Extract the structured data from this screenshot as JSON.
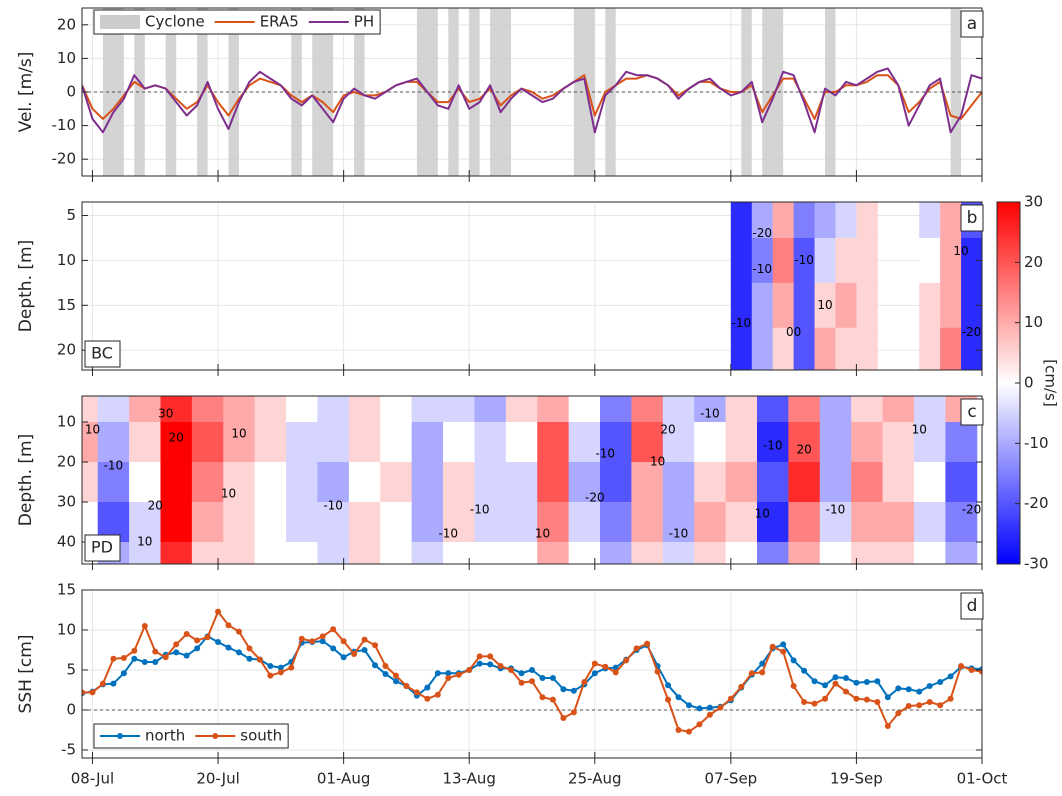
{
  "chart_data": [
    {
      "type": "line",
      "panel": "a",
      "ylabel": "Vel. [m/s]",
      "ylim": [
        -25,
        25
      ],
      "yticks": [
        -20,
        -10,
        0,
        10,
        20
      ],
      "grid": true,
      "zero_line": true,
      "legend": "upper left",
      "xlim": [
        "07-Jul",
        "01-Oct"
      ],
      "xticks": [
        "08-Jul",
        "20-Jul",
        "01-Aug",
        "13-Aug",
        "25-Aug",
        "07-Sep",
        "19-Sep",
        "01-Oct"
      ],
      "cyclone": {
        "name": "Cyclone",
        "color": "#cccccc",
        "spans": [
          [
            "09-Jul",
            "11-Jul"
          ],
          [
            "12-Jul",
            "13-Jul"
          ],
          [
            "15-Jul",
            "16-Jul"
          ],
          [
            "18-Jul",
            "19-Jul"
          ],
          [
            "21-Jul",
            "22-Jul"
          ],
          [
            "27-Jul",
            "28-Jul"
          ],
          [
            "29-Jul",
            "31-Jul"
          ],
          [
            "02-Aug",
            "03-Aug"
          ],
          [
            "08-Aug",
            "10-Aug"
          ],
          [
            "11-Aug",
            "12-Aug"
          ],
          [
            "13-Aug",
            "14-Aug"
          ],
          [
            "15-Aug",
            "17-Aug"
          ],
          [
            "23-Aug",
            "25-Aug"
          ],
          [
            "26-Aug",
            "27-Aug"
          ],
          [
            "08-Sep",
            "09-Sep"
          ],
          [
            "10-Sep",
            "12-Sep"
          ],
          [
            "16-Sep",
            "17-Sep"
          ],
          [
            "28-Sep",
            "29-Sep"
          ]
        ]
      },
      "x": [
        "07-Jul",
        "08-Jul",
        "09-Jul",
        "10-Jul",
        "11-Jul",
        "12-Jul",
        "13-Jul",
        "14-Jul",
        "15-Jul",
        "16-Jul",
        "17-Jul",
        "18-Jul",
        "19-Jul",
        "20-Jul",
        "21-Jul",
        "22-Jul",
        "23-Jul",
        "24-Jul",
        "25-Jul",
        "26-Jul",
        "27-Jul",
        "28-Jul",
        "29-Jul",
        "30-Jul",
        "31-Jul",
        "01-Aug",
        "02-Aug",
        "03-Aug",
        "04-Aug",
        "05-Aug",
        "06-Aug",
        "07-Aug",
        "08-Aug",
        "09-Aug",
        "10-Aug",
        "11-Aug",
        "12-Aug",
        "13-Aug",
        "14-Aug",
        "15-Aug",
        "16-Aug",
        "17-Aug",
        "18-Aug",
        "19-Aug",
        "20-Aug",
        "21-Aug",
        "22-Aug",
        "23-Aug",
        "24-Aug",
        "25-Aug",
        "26-Aug",
        "27-Aug",
        "28-Aug",
        "29-Aug",
        "30-Aug",
        "31-Aug",
        "01-Sep",
        "02-Sep",
        "03-Sep",
        "04-Sep",
        "05-Sep",
        "06-Sep",
        "07-Sep",
        "08-Sep",
        "09-Sep",
        "10-Sep",
        "11-Sep",
        "12-Sep",
        "13-Sep",
        "14-Sep",
        "15-Sep",
        "16-Sep",
        "17-Sep",
        "18-Sep",
        "19-Sep",
        "20-Sep",
        "21-Sep",
        "22-Sep",
        "23-Sep",
        "24-Sep",
        "25-Sep",
        "26-Sep",
        "27-Sep",
        "28-Sep",
        "29-Sep",
        "30-Sep",
        "01-Oct"
      ],
      "series": [
        {
          "name": "ERA5",
          "color": "#d95319",
          "values": [
            2,
            -5,
            -8,
            -5,
            -1,
            3,
            1,
            2,
            1,
            -2,
            -5,
            -3,
            2,
            -3,
            -7,
            -2,
            2,
            4,
            3,
            2,
            -1,
            -3,
            -1,
            -3,
            -6,
            -1,
            0,
            -1,
            -1,
            0,
            2,
            3,
            3,
            0,
            -3,
            -3,
            1,
            -3,
            -2,
            1,
            -4,
            -1,
            1,
            0,
            -2,
            -1,
            1,
            3,
            5,
            -7,
            0,
            2,
            4,
            4,
            5,
            4,
            2,
            -1,
            1,
            3,
            3,
            1,
            0,
            0,
            2,
            -6,
            -1,
            4,
            4,
            -2,
            -8,
            0,
            0,
            2,
            2,
            3,
            5,
            5,
            2,
            -6,
            -3,
            1,
            3,
            -7,
            -8,
            -4,
            0
          ]
        },
        {
          "name": "PH",
          "color": "#7e2f8e",
          "values": [
            2,
            -8,
            -12,
            -6,
            -2,
            5,
            1,
            2,
            1,
            -3,
            -7,
            -4,
            3,
            -5,
            -11,
            -3,
            3,
            6,
            4,
            2,
            -2,
            -4,
            -1,
            -5,
            -9,
            -2,
            1,
            -1,
            -2,
            0,
            2,
            3,
            4,
            0,
            -4,
            -5,
            2,
            -5,
            -3,
            2,
            -6,
            -2,
            1,
            -1,
            -3,
            -2,
            1,
            3,
            4,
            -12,
            -1,
            2,
            6,
            5,
            5,
            4,
            2,
            -2,
            1,
            3,
            4,
            1,
            -1,
            0,
            3,
            -9,
            -2,
            6,
            5,
            -3,
            -12,
            1,
            -1,
            3,
            2,
            4,
            6,
            7,
            2,
            -10,
            -4,
            2,
            4,
            -12,
            -7,
            5,
            4
          ]
        }
      ]
    },
    {
      "type": "heatmap",
      "panel": "b",
      "tag": "BC",
      "ylabel": "Depth. [m]",
      "ylim": [
        22.2,
        3.5
      ],
      "yticks": [
        5,
        10,
        15,
        20
      ],
      "grid": true,
      "xlim": [
        "07-Jul",
        "01-Oct"
      ],
      "xticks": [
        "08-Jul",
        "20-Jul",
        "01-Aug",
        "13-Aug",
        "25-Aug",
        "07-Sep",
        "19-Sep",
        "01-Oct"
      ],
      "colorbar": {
        "label": "[cm/s]",
        "lim": [
          -30,
          30
        ],
        "ticks": [
          -30,
          -20,
          -10,
          0,
          10,
          20,
          30
        ]
      },
      "x": [
        "08-Sep",
        "10-Sep",
        "12-Sep",
        "14-Sep",
        "16-Sep",
        "18-Sep",
        "20-Sep",
        "22-Sep",
        "24-Sep",
        "26-Sep",
        "28-Sep",
        "30-Sep"
      ],
      "y": [
        5,
        10,
        15,
        20
      ],
      "z": [
        [
          -25,
          -10,
          10,
          -15,
          -10,
          -5,
          5,
          null,
          null,
          -5,
          10,
          -20
        ],
        [
          -25,
          -15,
          15,
          -20,
          -5,
          5,
          5,
          null,
          null,
          0,
          10,
          -25
        ],
        [
          -25,
          -10,
          10,
          -20,
          5,
          10,
          5,
          null,
          null,
          5,
          10,
          -25
        ],
        [
          -25,
          -10,
          5,
          -20,
          10,
          5,
          5,
          null,
          null,
          5,
          15,
          -25
        ]
      ],
      "annotations": [
        {
          "x": "08-Sep",
          "y": 17,
          "text": "-10"
        },
        {
          "x": "10-Sep",
          "y": 7,
          "text": "-20"
        },
        {
          "x": "10-Sep",
          "y": 11,
          "text": "-10"
        },
        {
          "x": "14-Sep",
          "y": 10,
          "text": "-10"
        },
        {
          "x": "16-Sep",
          "y": 15,
          "text": "10"
        },
        {
          "x": "13-Sep",
          "y": 18,
          "text": "00"
        },
        {
          "x": "29-Sep",
          "y": 9,
          "text": "10"
        },
        {
          "x": "30-Sep",
          "y": 18,
          "text": "-20"
        }
      ]
    },
    {
      "type": "heatmap",
      "panel": "c",
      "tag": "PD",
      "ylabel": "Depth. [m]",
      "ylim": [
        45.5,
        3.5
      ],
      "yticks": [
        10,
        20,
        30,
        40
      ],
      "grid": true,
      "xlim": [
        "07-Jul",
        "01-Oct"
      ],
      "xticks": [
        "08-Jul",
        "20-Jul",
        "01-Aug",
        "13-Aug",
        "25-Aug",
        "07-Sep",
        "19-Sep",
        "01-Oct"
      ],
      "x": [
        "07-Jul",
        "10-Jul",
        "13-Jul",
        "16-Jul",
        "19-Jul",
        "22-Jul",
        "25-Jul",
        "28-Jul",
        "31-Jul",
        "03-Aug",
        "06-Aug",
        "09-Aug",
        "12-Aug",
        "15-Aug",
        "18-Aug",
        "21-Aug",
        "24-Aug",
        "27-Aug",
        "30-Aug",
        "02-Sep",
        "05-Sep",
        "08-Sep",
        "11-Sep",
        "14-Sep",
        "17-Sep",
        "20-Sep",
        "23-Sep",
        "26-Sep",
        "29-Sep"
      ],
      "y": [
        5,
        15,
        25,
        35,
        45
      ],
      "z": [
        [
          5,
          -5,
          10,
          25,
          15,
          10,
          5,
          0,
          -5,
          5,
          0,
          -5,
          -5,
          -10,
          5,
          10,
          0,
          -15,
          15,
          -5,
          -10,
          5,
          -20,
          15,
          -10,
          5,
          10,
          -5,
          10
        ],
        [
          10,
          -10,
          5,
          30,
          20,
          10,
          5,
          -5,
          -5,
          5,
          0,
          -10,
          0,
          -5,
          0,
          20,
          -5,
          -20,
          20,
          -5,
          0,
          5,
          -25,
          20,
          -10,
          10,
          5,
          -5,
          -15
        ],
        [
          5,
          -15,
          0,
          30,
          15,
          5,
          0,
          -5,
          -10,
          0,
          5,
          -10,
          5,
          -5,
          -5,
          20,
          -10,
          -20,
          10,
          -10,
          5,
          10,
          -20,
          25,
          -10,
          15,
          5,
          0,
          -20
        ],
        [
          0,
          -20,
          -5,
          30,
          10,
          5,
          0,
          -5,
          -5,
          5,
          0,
          -10,
          5,
          -5,
          -5,
          15,
          -5,
          -15,
          10,
          -10,
          10,
          5,
          -25,
          15,
          -5,
          10,
          10,
          -5,
          -15
        ],
        [
          0,
          -10,
          -5,
          25,
          5,
          5,
          0,
          0,
          -5,
          5,
          0,
          -5,
          0,
          0,
          0,
          10,
          0,
          -10,
          5,
          -5,
          5,
          0,
          -15,
          10,
          0,
          5,
          5,
          0,
          -10
        ]
      ],
      "annotations": [
        {
          "x": "08-Jul",
          "y": 12,
          "text": "10"
        },
        {
          "x": "10-Jul",
          "y": 21,
          "text": "-10"
        },
        {
          "x": "15-Jul",
          "y": 8,
          "text": "30"
        },
        {
          "x": "16-Jul",
          "y": 14,
          "text": "20"
        },
        {
          "x": "14-Jul",
          "y": 31,
          "text": "20"
        },
        {
          "x": "13-Jul",
          "y": 40,
          "text": "10"
        },
        {
          "x": "22-Jul",
          "y": 13,
          "text": "10"
        },
        {
          "x": "21-Jul",
          "y": 28,
          "text": "10"
        },
        {
          "x": "31-Jul",
          "y": 31,
          "text": "-10"
        },
        {
          "x": "11-Aug",
          "y": 38,
          "text": "-10"
        },
        {
          "x": "14-Aug",
          "y": 32,
          "text": "-10"
        },
        {
          "x": "20-Aug",
          "y": 38,
          "text": "10"
        },
        {
          "x": "26-Aug",
          "y": 18,
          "text": "-10"
        },
        {
          "x": "25-Aug",
          "y": 29,
          "text": "-20"
        },
        {
          "x": "31-Aug",
          "y": 20,
          "text": "10"
        },
        {
          "x": "01-Sep",
          "y": 12,
          "text": "20"
        },
        {
          "x": "02-Sep",
          "y": 38,
          "text": "-10"
        },
        {
          "x": "05-Sep",
          "y": 8,
          "text": "-10"
        },
        {
          "x": "11-Sep",
          "y": 16,
          "text": "-10"
        },
        {
          "x": "10-Sep",
          "y": 33,
          "text": "10"
        },
        {
          "x": "14-Sep",
          "y": 17,
          "text": "20"
        },
        {
          "x": "17-Sep",
          "y": 32,
          "text": "-10"
        },
        {
          "x": "25-Sep",
          "y": 12,
          "text": "10"
        },
        {
          "x": "30-Sep",
          "y": 32,
          "text": "-20"
        }
      ]
    },
    {
      "type": "line",
      "panel": "d",
      "ylabel": "SSH [cm]",
      "ylim": [
        -6,
        15
      ],
      "yticks": [
        -5,
        0,
        5,
        10,
        15
      ],
      "grid": true,
      "zero_line": true,
      "markers": true,
      "legend": "lower left",
      "xlim": [
        "07-Jul",
        "01-Oct"
      ],
      "xticks": [
        "08-Jul",
        "20-Jul",
        "01-Aug",
        "13-Aug",
        "25-Aug",
        "07-Sep",
        "19-Sep",
        "01-Oct"
      ],
      "x": [
        "07-Jul",
        "08-Jul",
        "09-Jul",
        "10-Jul",
        "11-Jul",
        "12-Jul",
        "13-Jul",
        "14-Jul",
        "15-Jul",
        "16-Jul",
        "17-Jul",
        "18-Jul",
        "19-Jul",
        "20-Jul",
        "21-Jul",
        "22-Jul",
        "23-Jul",
        "24-Jul",
        "25-Jul",
        "26-Jul",
        "27-Jul",
        "28-Jul",
        "29-Jul",
        "30-Jul",
        "31-Jul",
        "01-Aug",
        "02-Aug",
        "03-Aug",
        "04-Aug",
        "05-Aug",
        "06-Aug",
        "07-Aug",
        "08-Aug",
        "09-Aug",
        "10-Aug",
        "11-Aug",
        "12-Aug",
        "13-Aug",
        "14-Aug",
        "15-Aug",
        "16-Aug",
        "17-Aug",
        "18-Aug",
        "19-Aug",
        "20-Aug",
        "21-Aug",
        "22-Aug",
        "23-Aug",
        "24-Aug",
        "25-Aug",
        "26-Aug",
        "27-Aug",
        "28-Aug",
        "29-Aug",
        "30-Aug",
        "31-Aug",
        "01-Sep",
        "02-Sep",
        "03-Sep",
        "04-Sep",
        "05-Sep",
        "06-Sep",
        "07-Sep",
        "08-Sep",
        "09-Sep",
        "10-Sep",
        "11-Sep",
        "12-Sep",
        "13-Sep",
        "14-Sep",
        "15-Sep",
        "16-Sep",
        "17-Sep",
        "18-Sep",
        "19-Sep",
        "20-Sep",
        "21-Sep",
        "22-Sep",
        "23-Sep",
        "24-Sep",
        "25-Sep",
        "26-Sep",
        "27-Sep",
        "28-Sep",
        "29-Sep",
        "30-Sep",
        "01-Oct"
      ],
      "series": [
        {
          "name": "north",
          "color": "#0072bd",
          "values": [
            2.1,
            2.3,
            3.2,
            3.3,
            4.6,
            6.4,
            6.0,
            6.0,
            6.9,
            7.2,
            6.8,
            7.7,
            9.2,
            8.5,
            7.8,
            7.2,
            6.4,
            6.3,
            5.5,
            5.3,
            6.0,
            8.4,
            8.5,
            8.6,
            7.7,
            6.6,
            7.3,
            7.5,
            5.6,
            4.5,
            3.6,
            3.0,
            1.8,
            2.8,
            4.6,
            4.6,
            4.6,
            5.0,
            5.8,
            5.7,
            5.2,
            5.2,
            4.6,
            5.0,
            4.0,
            4.0,
            2.6,
            2.4,
            3.2,
            4.6,
            5.2,
            5.3,
            6.3,
            7.5,
            8.1,
            5.5,
            3.1,
            1.6,
            0.6,
            0.2,
            0.3,
            0.4,
            1.2,
            2.8,
            4.4,
            5.8,
            7.7,
            8.2,
            6.2,
            4.9,
            3.6,
            3.1,
            4.1,
            4.0,
            3.4,
            3.5,
            3.6,
            1.6,
            2.7,
            2.6,
            2.3,
            3.0,
            3.5,
            4.2,
            5.4,
            5.2,
            5.1
          ]
        },
        {
          "name": "south",
          "color": "#d95319",
          "values": [
            2.2,
            2.2,
            3.3,
            6.4,
            6.5,
            7.4,
            10.5,
            7.3,
            6.6,
            8.2,
            9.5,
            8.7,
            9.1,
            12.3,
            10.6,
            9.8,
            7.7,
            6.3,
            4.3,
            4.7,
            5.3,
            8.9,
            8.6,
            9.2,
            10.1,
            8.6,
            7.0,
            8.8,
            8.1,
            5.5,
            4.3,
            3.0,
            2.2,
            1.4,
            1.9,
            4.0,
            4.4,
            5.0,
            6.7,
            6.7,
            5.5,
            5.0,
            3.4,
            3.6,
            1.6,
            1.3,
            -1.0,
            -0.3,
            3.5,
            5.8,
            5.4,
            4.7,
            6.2,
            7.7,
            8.3,
            4.8,
            1.3,
            -2.5,
            -2.7,
            -1.8,
            -0.6,
            0.3,
            1.4,
            2.9,
            4.6,
            4.7,
            7.9,
            7.3,
            3.0,
            1.0,
            0.8,
            1.4,
            3.3,
            2.3,
            1.4,
            1.3,
            1.0,
            -2.0,
            -0.4,
            0.5,
            0.6,
            1.0,
            0.6,
            1.4,
            5.5,
            5.0,
            4.8
          ]
        }
      ]
    }
  ]
}
